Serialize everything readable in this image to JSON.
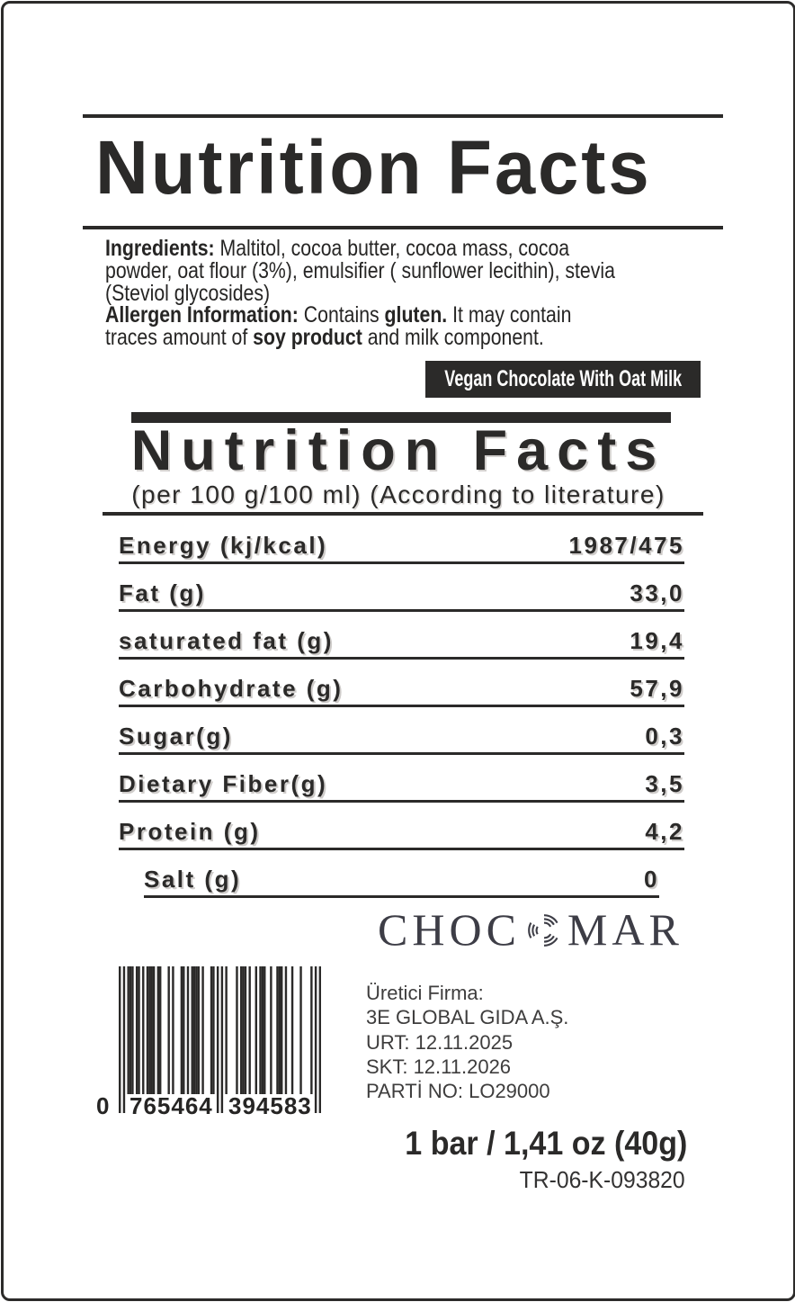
{
  "header": {
    "title": "Nutrition Facts"
  },
  "ingredients": {
    "l1_bold": "Ingredients:",
    "l1_rest": " Maltitol, cocoa butter, cocoa mass, cocoa",
    "l2": "powder, oat flour (3%), emulsifier ( sunflower lecithin), stevia",
    "l3": "(Steviol glycosides)",
    "l4_bold": "Allergen Information:",
    "l4_a": " Contains ",
    "l4_gluten": "gluten.",
    "l4_b": " It may contain",
    "l5_a": "traces amount of ",
    "l5_soy": "soy product",
    "l5_b": "  and milk component."
  },
  "badge": {
    "label": "Vegan Chocolate With Oat Milk"
  },
  "panel": {
    "title": "Nutrition Facts",
    "subtitle": "(per 100 g/100 ml) (According to literature)",
    "rows": [
      {
        "label": "Energy (kj/kcal)",
        "value": "1987/475"
      },
      {
        "label": "Fat (g)",
        "value": "33,0"
      },
      {
        "label": "saturated fat (g)",
        "value": "19,4"
      },
      {
        "label": "Carbohydrate (g)",
        "value": "57,9"
      },
      {
        "label": "Sugar(g)",
        "value": "0,3"
      },
      {
        "label": "Dietary Fiber(g)",
        "value": "3,5"
      },
      {
        "label": "Protein (g)",
        "value": "4,2"
      },
      {
        "label": "Salt (g)",
        "value": "0"
      }
    ]
  },
  "brand": {
    "name_left": "CHOC",
    "name_right": "MAR"
  },
  "barcode": {
    "lead_digit": "0",
    "group1": "765464",
    "group2": "394583"
  },
  "producer": {
    "lines": [
      "Üretici Firma:",
      "3E GLOBAL GIDA  A.Ş.",
      "URT: 12.11.2025",
      "SKT: 12.11.2026",
      "PARTİ NO: LO29000"
    ]
  },
  "footer": {
    "size": "1 bar / 1,41 oz (40g)",
    "registration": "TR-06-K-093820"
  },
  "colors": {
    "ink": "#2b2a29",
    "badge_bg": "#2b2a29",
    "logo": "#3d3d46",
    "producer_text": "#3e3d3d"
  }
}
